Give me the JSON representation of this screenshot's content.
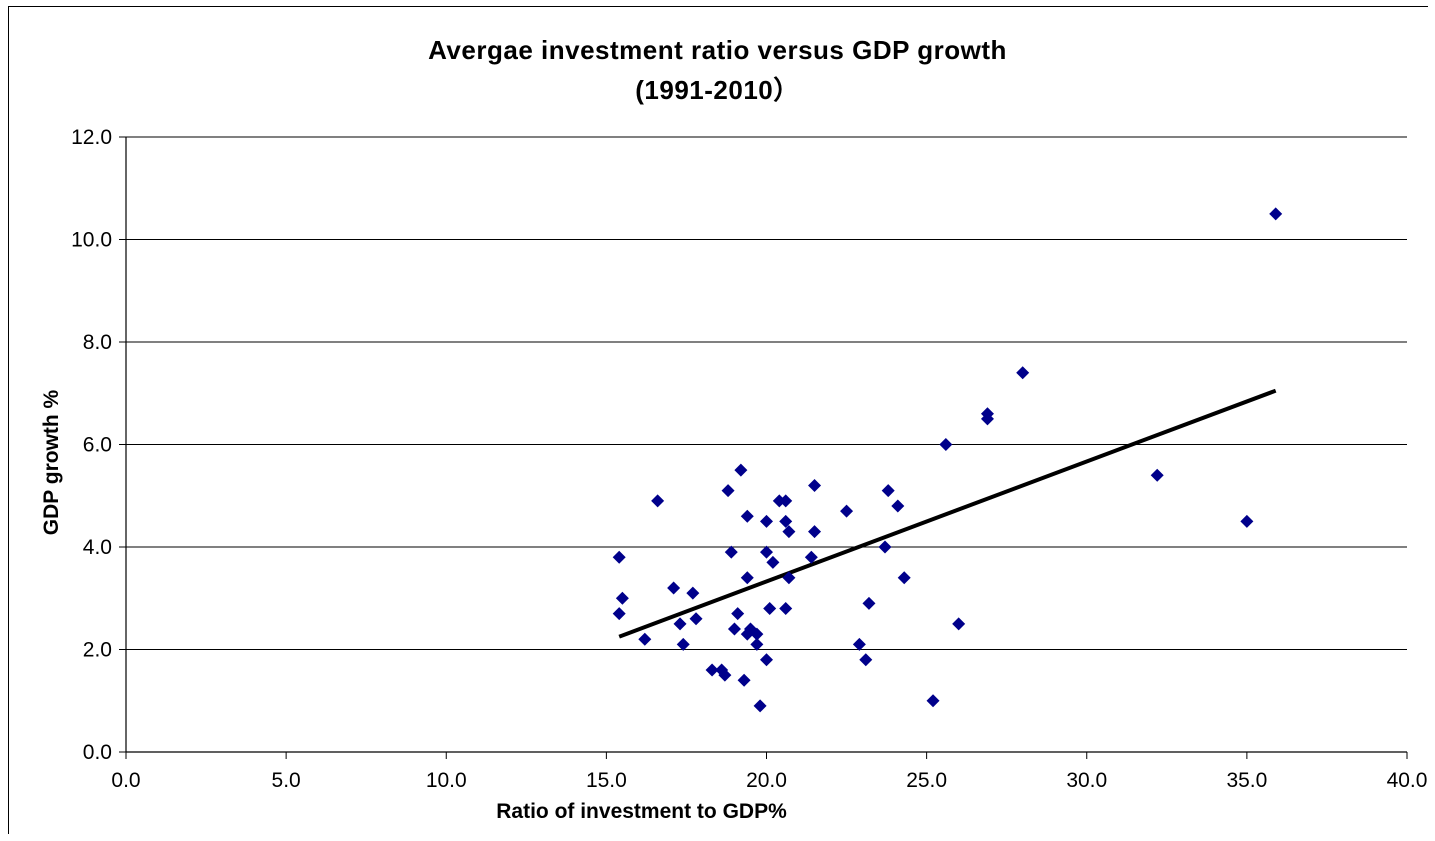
{
  "chart_data": {
    "type": "scatter",
    "title": "Avergae investment ratio versus GDP growth",
    "subtitle": "(1991-2010）",
    "xlabel": "Ratio of investment to GDP%",
    "ylabel": "GDP growth %",
    "xlim": [
      0,
      40
    ],
    "ylim": [
      0,
      12
    ],
    "x_ticks": [
      "0.0",
      "5.0",
      "10.0",
      "15.0",
      "20.0",
      "25.0",
      "30.0",
      "35.0",
      "40.0"
    ],
    "y_ticks": [
      "0.0",
      "2.0",
      "4.0",
      "6.0",
      "8.0",
      "10.0",
      "12.0"
    ],
    "grid": "horizontal",
    "legend": "none",
    "marker": "diamond",
    "marker_color": "#00008b",
    "trendline_color": "#000000",
    "series": [
      {
        "values": [
          {
            "x": 15.4,
            "y": 3.8
          },
          {
            "x": 15.5,
            "y": 3.0
          },
          {
            "x": 15.4,
            "y": 2.7
          },
          {
            "x": 16.2,
            "y": 2.2
          },
          {
            "x": 16.6,
            "y": 4.9
          },
          {
            "x": 17.1,
            "y": 3.2
          },
          {
            "x": 17.3,
            "y": 2.5
          },
          {
            "x": 17.4,
            "y": 2.1
          },
          {
            "x": 17.7,
            "y": 3.1
          },
          {
            "x": 17.8,
            "y": 2.6
          },
          {
            "x": 18.3,
            "y": 1.6
          },
          {
            "x": 18.6,
            "y": 1.6
          },
          {
            "x": 18.7,
            "y": 1.5
          },
          {
            "x": 18.8,
            "y": 5.1
          },
          {
            "x": 18.9,
            "y": 3.9
          },
          {
            "x": 19.0,
            "y": 2.4
          },
          {
            "x": 19.1,
            "y": 2.7
          },
          {
            "x": 19.2,
            "y": 5.5
          },
          {
            "x": 19.3,
            "y": 1.4
          },
          {
            "x": 19.4,
            "y": 4.6
          },
          {
            "x": 19.4,
            "y": 3.4
          },
          {
            "x": 19.4,
            "y": 2.3
          },
          {
            "x": 19.5,
            "y": 2.4
          },
          {
            "x": 19.7,
            "y": 2.3
          },
          {
            "x": 19.7,
            "y": 2.1
          },
          {
            "x": 19.8,
            "y": 0.9
          },
          {
            "x": 20.0,
            "y": 4.5
          },
          {
            "x": 20.0,
            "y": 3.9
          },
          {
            "x": 20.0,
            "y": 1.8
          },
          {
            "x": 20.1,
            "y": 2.8
          },
          {
            "x": 20.2,
            "y": 3.7
          },
          {
            "x": 20.4,
            "y": 4.9
          },
          {
            "x": 20.6,
            "y": 4.9
          },
          {
            "x": 20.6,
            "y": 4.5
          },
          {
            "x": 20.6,
            "y": 2.8
          },
          {
            "x": 20.7,
            "y": 4.3
          },
          {
            "x": 20.7,
            "y": 3.4
          },
          {
            "x": 21.4,
            "y": 3.8
          },
          {
            "x": 21.5,
            "y": 5.2
          },
          {
            "x": 21.5,
            "y": 4.3
          },
          {
            "x": 22.5,
            "y": 4.7
          },
          {
            "x": 22.9,
            "y": 2.1
          },
          {
            "x": 23.1,
            "y": 1.8
          },
          {
            "x": 23.2,
            "y": 2.9
          },
          {
            "x": 23.7,
            "y": 4.0
          },
          {
            "x": 23.8,
            "y": 5.1
          },
          {
            "x": 24.1,
            "y": 4.8
          },
          {
            "x": 24.3,
            "y": 3.4
          },
          {
            "x": 25.2,
            "y": 1.0
          },
          {
            "x": 25.6,
            "y": 6.0
          },
          {
            "x": 26.0,
            "y": 2.5
          },
          {
            "x": 26.9,
            "y": 6.6
          },
          {
            "x": 26.9,
            "y": 6.5
          },
          {
            "x": 28.0,
            "y": 7.4
          },
          {
            "x": 32.2,
            "y": 5.4
          },
          {
            "x": 35.0,
            "y": 4.5
          },
          {
            "x": 35.9,
            "y": 10.5
          }
        ]
      }
    ],
    "trendline": {
      "x": [
        15.4,
        35.9
      ],
      "y": [
        2.25,
        7.05
      ]
    }
  }
}
